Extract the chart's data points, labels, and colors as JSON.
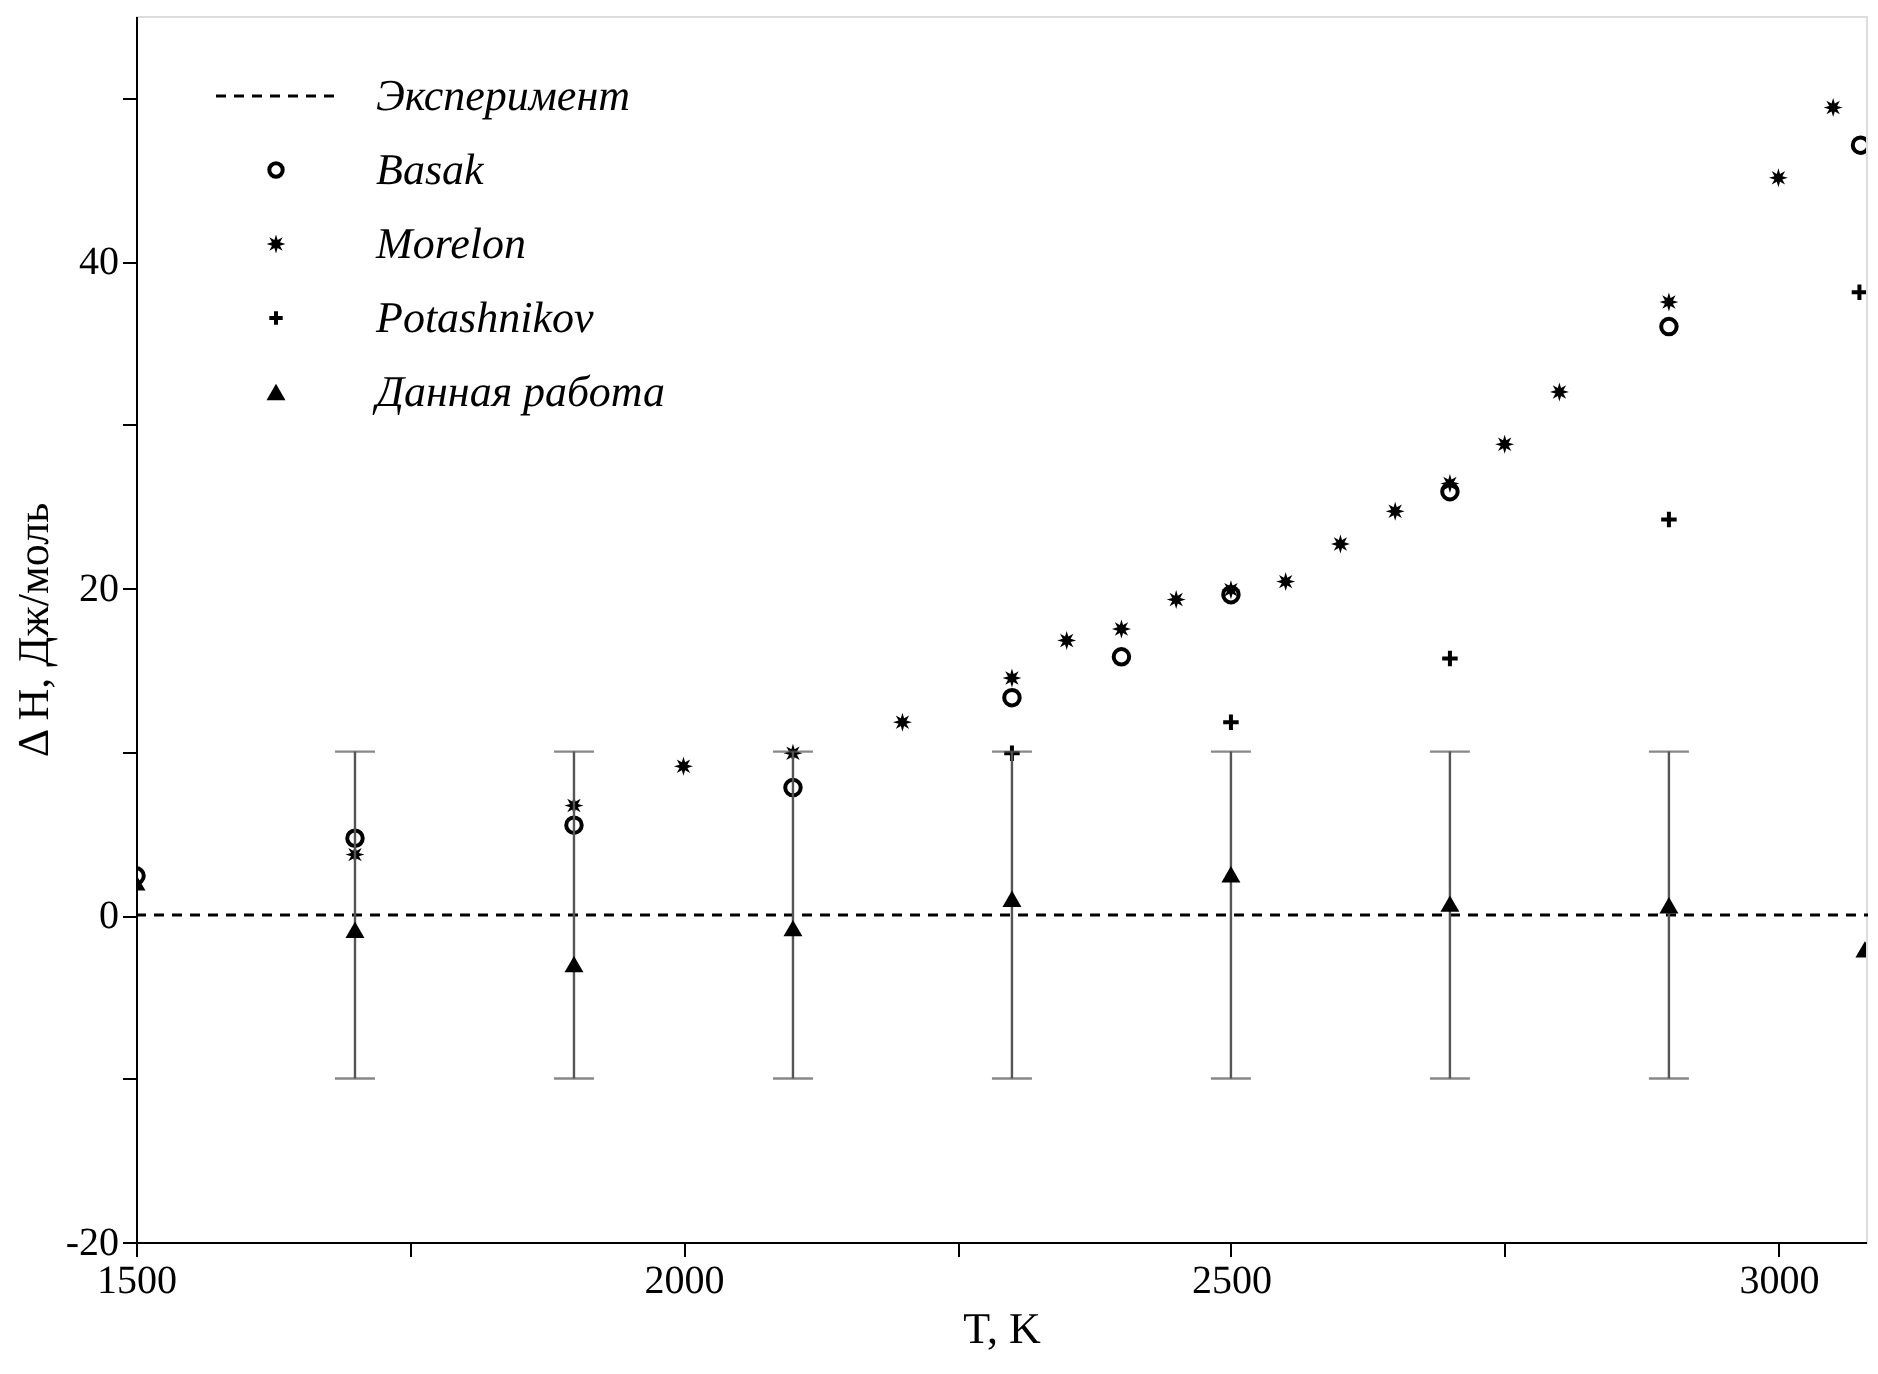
{
  "chart_data": {
    "type": "scatter",
    "xlabel": "T, K",
    "ylabel": "Δ H, Дж/моль",
    "xlim": [
      1500,
      3080
    ],
    "ylim": [
      -20,
      55
    ],
    "xticks": [
      1500,
      {
        "value": 1750,
        "label": null
      },
      2000,
      {
        "value": 2250,
        "label": null
      },
      2500,
      {
        "value": 2750,
        "label": null
      },
      3000
    ],
    "yticks": [
      -20,
      {
        "value": -10,
        "label": null
      },
      0,
      {
        "value": 10,
        "label": null
      },
      20,
      {
        "value": 30,
        "label": null
      },
      40,
      {
        "value": 50,
        "label": null
      }
    ],
    "grid": false,
    "legend": "top left",
    "ref_lines": [
      {
        "axis": "y",
        "value": 0,
        "label": "Эксперимент",
        "color": "#000000",
        "line_style": "dashed"
      }
    ],
    "series": [
      {
        "name": "Basak",
        "color": "#000000",
        "marker": "circle",
        "x": [
          1500,
          1700,
          1900,
          2100,
          2300,
          2400,
          2500,
          2700,
          2900,
          3075
        ],
        "values": [
          2.4,
          4.7,
          5.5,
          7.8,
          13.3,
          15.8,
          19.6,
          25.9,
          36.0,
          47.1
        ]
      },
      {
        "name": "Morelon",
        "color": "#000000",
        "marker": "star",
        "x": [
          1700,
          1900,
          2000,
          2100,
          2200,
          2300,
          2350,
          2400,
          2450,
          2500,
          2550,
          2600,
          2650,
          2700,
          2750,
          2800,
          2900,
          3000,
          3050
        ],
        "values": [
          3.7,
          6.7,
          9.1,
          9.9,
          11.8,
          14.5,
          16.8,
          17.5,
          19.3,
          19.9,
          20.4,
          22.7,
          24.7,
          26.4,
          28.8,
          32.0,
          37.5,
          45.1,
          49.4
        ]
      },
      {
        "name": "Potashnikov",
        "color": "#000000",
        "marker": "cross",
        "x": [
          2300,
          2500,
          2700,
          2900,
          3074
        ],
        "values": [
          9.9,
          11.8,
          15.7,
          24.2,
          38.1
        ]
      },
      {
        "name": "Данная работа",
        "color": "#000000",
        "marker": "triangle",
        "x": [
          1500,
          1700,
          1900,
          2100,
          2300,
          2500,
          2700,
          2900,
          3079
        ],
        "values": [
          2.0,
          -0.9,
          -3.0,
          -0.8,
          1.0,
          2.5,
          0.7,
          0.6,
          -2.1
        ],
        "errors": [
          null,
          [
            -10,
            10
          ],
          [
            -10,
            10
          ],
          [
            -10,
            10
          ],
          [
            -10,
            10
          ],
          [
            -10,
            10
          ],
          [
            -10,
            10
          ],
          [
            -10,
            10
          ],
          null
        ]
      }
    ]
  }
}
